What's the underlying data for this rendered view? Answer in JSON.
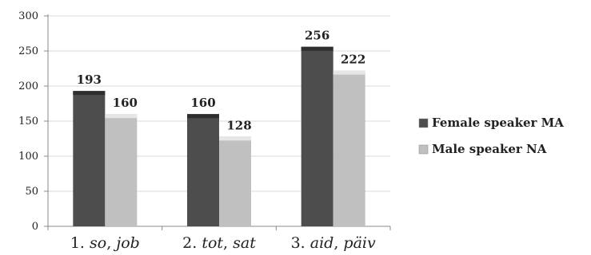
{
  "chart_data": {
    "type": "bar",
    "categories": [
      {
        "num": "1.",
        "a": "so",
        "b": "job"
      },
      {
        "num": "2.",
        "a": "tot",
        "b": "sat"
      },
      {
        "num": "3.",
        "a": "aid",
        "b": "päiv"
      }
    ],
    "series": [
      {
        "name": "Female speaker MA",
        "values": [
          193,
          160,
          256
        ],
        "color": "#4d4d4d",
        "top_color": "#2e2e2e"
      },
      {
        "name": "Male speaker NA",
        "values": [
          160,
          128,
          222
        ],
        "color": "#c0c0c0",
        "top_color": "#e6e6e6"
      }
    ],
    "yticks": [
      0,
      50,
      100,
      150,
      200,
      250,
      300
    ],
    "ylim": [
      0,
      300
    ],
    "grid": true,
    "legend_position": "right"
  }
}
